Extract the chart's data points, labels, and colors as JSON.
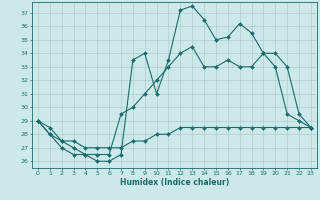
{
  "title": "",
  "xlabel": "Humidex (Indice chaleur)",
  "xlim": [
    -0.5,
    23.5
  ],
  "ylim": [
    25.5,
    37.8
  ],
  "yticks": [
    26,
    27,
    28,
    29,
    30,
    31,
    32,
    33,
    34,
    35,
    36,
    37
  ],
  "xticks": [
    0,
    1,
    2,
    3,
    4,
    5,
    6,
    7,
    8,
    9,
    10,
    11,
    12,
    13,
    14,
    15,
    16,
    17,
    18,
    19,
    20,
    21,
    22,
    23
  ],
  "bg_color": "#cde8e8",
  "line_color": "#1a6b6b",
  "grid_color": "#b0cccc",
  "curve1_x": [
    0,
    1,
    2,
    3,
    4,
    5,
    6,
    7,
    8,
    9,
    10,
    11,
    12,
    13,
    14,
    15,
    16,
    17,
    18,
    19,
    20,
    21,
    22,
    23
  ],
  "curve1_y": [
    29,
    28,
    27,
    26.5,
    26.5,
    26,
    26,
    26.5,
    33.5,
    34,
    31,
    33.5,
    37.2,
    37.5,
    36.5,
    35,
    35.2,
    36.2,
    35.5,
    34,
    33,
    29.5,
    29,
    28.5
  ],
  "curve2_x": [
    0,
    1,
    2,
    3,
    4,
    5,
    6,
    7,
    8,
    9,
    10,
    11,
    12,
    13,
    14,
    15,
    16,
    17,
    18,
    19,
    20,
    21,
    22,
    23
  ],
  "curve2_y": [
    29,
    28,
    27.5,
    27,
    26.5,
    26.5,
    26.5,
    29.5,
    30,
    31,
    32,
    33,
    34,
    34.5,
    33,
    33,
    33.5,
    33,
    33,
    34,
    34,
    33,
    29.5,
    28.5
  ],
  "curve3_x": [
    0,
    1,
    2,
    3,
    4,
    5,
    6,
    7,
    8,
    9,
    10,
    11,
    12,
    13,
    14,
    15,
    16,
    17,
    18,
    19,
    20,
    21,
    22,
    23
  ],
  "curve3_y": [
    29,
    28.5,
    27.5,
    27.5,
    27,
    27,
    27,
    27,
    27.5,
    27.5,
    28,
    28,
    28.5,
    28.5,
    28.5,
    28.5,
    28.5,
    28.5,
    28.5,
    28.5,
    28.5,
    28.5,
    28.5,
    28.5
  ]
}
